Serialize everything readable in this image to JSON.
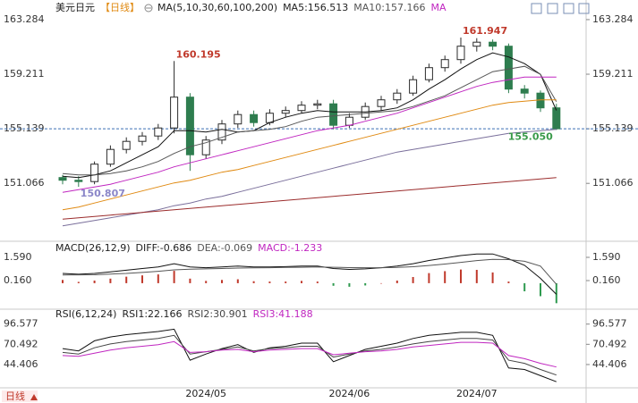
{
  "chart_data": [
    {
      "type": "candlestick",
      "title": "美元日元",
      "period": "【日线】",
      "indicator": "MA(5,10,30,60,100,200)",
      "categories": [
        null,
        null,
        null,
        null,
        null,
        null,
        null,
        null,
        null,
        "2024/05",
        null,
        null,
        null,
        null,
        null,
        null,
        null,
        null,
        "2024/06",
        null,
        null,
        null,
        null,
        null,
        null,
        null,
        "2024/07",
        null,
        null,
        null,
        null,
        null
      ],
      "open": [
        151.5,
        151.3,
        151.2,
        152.5,
        153.6,
        154.2,
        154.6,
        155.2,
        157.5,
        153.2,
        154.3,
        155.5,
        156.2,
        155.6,
        156.3,
        156.5,
        156.9,
        157.0,
        155.4,
        156.0,
        156.8,
        157.3,
        157.8,
        158.8,
        159.7,
        160.3,
        161.3,
        161.6,
        161.3,
        158.1,
        157.8,
        156.7
      ],
      "high": [
        151.7,
        151.6,
        152.7,
        153.9,
        154.5,
        154.9,
        155.5,
        160.195,
        157.8,
        154.6,
        155.8,
        156.5,
        156.5,
        156.6,
        156.8,
        157.2,
        157.3,
        157.3,
        156.3,
        157.1,
        157.6,
        158.1,
        159.1,
        160.0,
        160.6,
        161.947,
        161.9,
        161.8,
        161.5,
        158.4,
        158.0,
        157.0
      ],
      "low": [
        151.0,
        150.807,
        151.0,
        152.3,
        153.3,
        153.9,
        154.3,
        154.8,
        152.0,
        152.9,
        154.0,
        155.2,
        155.3,
        155.4,
        156.0,
        156.3,
        156.6,
        155.1,
        155.2,
        155.8,
        156.5,
        157.0,
        157.6,
        158.6,
        159.4,
        160.0,
        160.9,
        161.0,
        157.8,
        157.4,
        156.4,
        155.05
      ],
      "close": [
        151.3,
        151.2,
        152.5,
        153.6,
        154.2,
        154.6,
        155.2,
        157.5,
        153.2,
        154.3,
        155.5,
        156.2,
        155.6,
        156.3,
        156.5,
        156.9,
        157.0,
        155.4,
        156.0,
        156.8,
        157.3,
        157.8,
        158.8,
        159.7,
        160.3,
        161.3,
        161.6,
        161.3,
        158.1,
        157.8,
        156.7,
        155.139
      ],
      "up_color": "#2b2b2b",
      "down_color": "#2e7d4f",
      "series": [
        {
          "name": "MA5:156.513",
          "color": "#111111",
          "values": [
            151.6,
            151.5,
            151.7,
            152.0,
            152.6,
            153.2,
            153.8,
            155.0,
            155.0,
            154.9,
            155.1,
            154.9,
            155.0,
            155.6,
            156.0,
            156.3,
            156.5,
            156.4,
            156.4,
            156.4,
            156.5,
            156.7,
            157.3,
            158.1,
            158.8,
            159.6,
            160.3,
            160.8,
            160.5,
            160.0,
            159.2,
            156.513
          ]
        },
        {
          "name": "MA10:157.166",
          "color": "#555555",
          "values": [
            151.8,
            151.7,
            151.7,
            151.8,
            152.0,
            152.3,
            152.7,
            153.3,
            153.8,
            154.1,
            154.5,
            154.9,
            155.0,
            155.1,
            155.3,
            155.7,
            156.0,
            156.1,
            156.2,
            156.3,
            156.4,
            156.5,
            156.8,
            157.2,
            157.6,
            158.2,
            158.8,
            159.4,
            159.6,
            159.8,
            159.2,
            157.166
          ]
        },
        {
          "name": "MA",
          "color": "#c026c0",
          "values": [
            150.4,
            150.6,
            150.8,
            151.0,
            151.3,
            151.6,
            151.9,
            152.3,
            152.6,
            152.9,
            153.2,
            153.5,
            153.8,
            154.1,
            154.4,
            154.7,
            155.0,
            155.2,
            155.4,
            155.7,
            156.0,
            156.3,
            156.7,
            157.1,
            157.5,
            157.9,
            158.3,
            158.6,
            158.8,
            159.0,
            159.0,
            159.0
          ]
        },
        {
          "color": "#e08a12",
          "values": [
            149.1,
            149.3,
            149.6,
            149.9,
            150.2,
            150.5,
            150.8,
            151.1,
            151.3,
            151.6,
            151.9,
            152.1,
            152.4,
            152.7,
            153.0,
            153.3,
            153.6,
            153.9,
            154.2,
            154.5,
            154.8,
            155.1,
            155.4,
            155.7,
            156.0,
            156.3,
            156.6,
            156.9,
            157.1,
            157.2,
            157.3,
            157.3
          ]
        },
        {
          "color": "#7a6f9b",
          "values": [
            147.9,
            148.1,
            148.3,
            148.5,
            148.7,
            148.9,
            149.1,
            149.4,
            149.6,
            149.9,
            150.1,
            150.4,
            150.7,
            151.0,
            151.3,
            151.6,
            151.9,
            152.2,
            152.5,
            152.8,
            153.1,
            153.4,
            153.6,
            153.8,
            154.0,
            154.2,
            154.4,
            154.6,
            154.8,
            154.9,
            155.0,
            155.1
          ]
        },
        {
          "color": "#9b2c2c",
          "values": [
            148.4,
            148.5,
            148.6,
            148.7,
            148.8,
            148.9,
            149.0,
            149.1,
            149.2,
            149.3,
            149.4,
            149.5,
            149.6,
            149.7,
            149.8,
            149.9,
            150.0,
            150.1,
            150.2,
            150.3,
            150.4,
            150.5,
            150.6,
            150.7,
            150.8,
            150.9,
            151.0,
            151.1,
            151.2,
            151.3,
            151.4,
            151.5
          ]
        }
      ],
      "annotations": [
        {
          "value": 160.195,
          "label": "160.195",
          "color": "#c0392b"
        },
        {
          "value": 161.947,
          "label": "161.947",
          "color": "#c0392b"
        },
        {
          "value": 150.807,
          "label": "150.807",
          "color": "#8a86c8"
        },
        {
          "value": 155.05,
          "label": "155.050",
          "color": "#3a9a4a"
        }
      ],
      "price_line": 155.139,
      "price_line_color": "#3b6fb5",
      "ylim": [
        146.88,
        164.08
      ],
      "yticks": [
        163.284,
        159.211,
        155.139,
        151.066
      ],
      "grid": false
    },
    {
      "type": "macd",
      "title": "MACD(26,12,9)",
      "series": [
        {
          "name": "DIFF:-0.686",
          "color": "#111111",
          "values": [
            0.6,
            0.55,
            0.6,
            0.7,
            0.8,
            0.9,
            1.0,
            1.2,
            1.0,
            0.95,
            1.0,
            1.05,
            1.0,
            1.0,
            1.02,
            1.05,
            1.05,
            0.9,
            0.85,
            0.88,
            0.95,
            1.05,
            1.2,
            1.4,
            1.55,
            1.7,
            1.8,
            1.8,
            1.5,
            1.1,
            0.3,
            -0.686
          ]
        },
        {
          "name": "DEA:-0.069",
          "color": "#555555",
          "values": [
            0.5,
            0.51,
            0.52,
            0.56,
            0.6,
            0.66,
            0.73,
            0.82,
            0.86,
            0.88,
            0.9,
            0.93,
            0.94,
            0.95,
            0.97,
            0.98,
            1.0,
            0.98,
            0.96,
            0.95,
            0.95,
            0.97,
            1.01,
            1.09,
            1.18,
            1.28,
            1.39,
            1.47,
            1.45,
            1.35,
            1.05,
            -0.069
          ]
        }
      ],
      "bars": {
        "name": "MACD:-1.233",
        "name_color": "#c026c0",
        "up_color": "#c0392b",
        "down_color": "#2e9a4f",
        "values": [
          0.2,
          0.08,
          0.16,
          0.28,
          0.4,
          0.48,
          0.54,
          0.76,
          0.28,
          0.14,
          0.2,
          0.24,
          0.12,
          0.1,
          0.1,
          0.14,
          0.1,
          -0.16,
          -0.22,
          -0.14,
          0.0,
          0.16,
          0.38,
          0.62,
          0.74,
          0.84,
          0.82,
          0.66,
          0.1,
          -0.5,
          -0.8,
          -1.233
        ]
      },
      "ylim": [
        -1.38,
        2.03
      ],
      "yticks": [
        {
          "value": 1.59,
          "label": "1.590"
        },
        {
          "value": 0.16,
          "label": "0.160"
        }
      ]
    },
    {
      "type": "line",
      "title": "RSI(6,12,24)",
      "series": [
        {
          "name": "RSI1:22.166",
          "color": "#111111",
          "values": [
            65,
            62,
            75,
            80,
            83,
            85,
            87,
            90,
            50,
            58,
            65,
            70,
            60,
            66,
            68,
            72,
            72,
            48,
            56,
            64,
            68,
            72,
            78,
            82,
            84,
            86,
            86,
            82,
            40,
            38,
            30,
            22.166
          ]
        },
        {
          "name": "RSI2:30.901",
          "color": "#444444",
          "values": [
            60,
            58,
            66,
            71,
            74,
            76,
            78,
            82,
            58,
            61,
            64,
            67,
            62,
            65,
            66,
            68,
            68,
            54,
            58,
            62,
            64,
            67,
            71,
            74,
            76,
            78,
            78,
            76,
            50,
            46,
            38,
            30.901
          ]
        },
        {
          "name": "RSI3:41.188",
          "color": "#c026c0",
          "values": [
            56,
            55,
            59,
            63,
            66,
            68,
            70,
            74,
            60,
            61,
            63,
            64,
            61,
            63,
            64,
            65,
            65,
            57,
            59,
            61,
            62,
            64,
            67,
            69,
            71,
            73,
            73,
            72,
            56,
            52,
            46,
            41.188
          ]
        }
      ],
      "ylim": [
        16.66,
        105.46
      ],
      "yticks": [
        96.577,
        70.492,
        44.406
      ]
    }
  ],
  "footer": {
    "period": "日线"
  }
}
